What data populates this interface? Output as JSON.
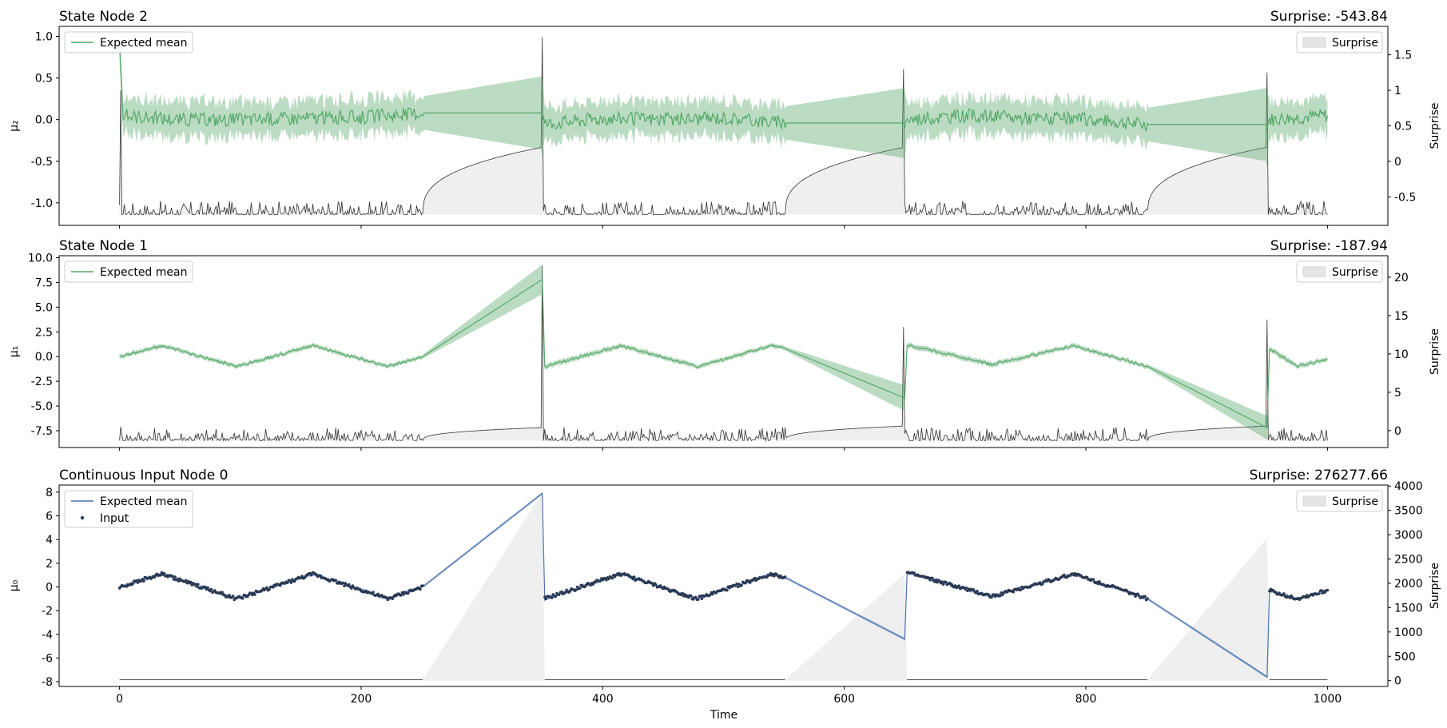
{
  "figure": {
    "xlabel": "Time",
    "xticks": [
      0,
      200,
      400,
      600,
      800,
      1000
    ],
    "xlim": [
      -50,
      1050
    ]
  },
  "chart_data": [
    {
      "type": "line",
      "title": "State Node 2",
      "surprise_label": "Surprise: -543.84",
      "ylabel": "μ₂",
      "ylabel_right": "Surprise",
      "ylim": [
        -1.27,
        1.12
      ],
      "yticks": [
        -1.0,
        -0.5,
        0.0,
        0.5,
        1.0
      ],
      "yticks_right": [
        -0.5,
        0.0,
        0.5,
        1.0,
        1.5
      ],
      "ylim_right": [
        -0.9,
        1.9
      ],
      "legend": {
        "mean_label": "Expected mean",
        "input_label": "",
        "surprise_label": "Surprise"
      },
      "colors": {
        "mean": "#55a868",
        "band": "#55a868",
        "surprise_line": "#333333",
        "surprise_fill": "#e5e5e5"
      },
      "series": {
        "mean_points": [
          [
            0,
            0.9
          ],
          [
            3,
            0.05
          ],
          [
            50,
            0.0
          ],
          [
            100,
            0.0
          ],
          [
            150,
            0.02
          ],
          [
            200,
            0.03
          ],
          [
            251,
            0.08
          ],
          [
            350,
            0.08
          ],
          [
            352,
            -0.05
          ],
          [
            400,
            0.02
          ],
          [
            450,
            0.0
          ],
          [
            500,
            0.02
          ],
          [
            551,
            -0.04
          ],
          [
            650,
            -0.04
          ],
          [
            652,
            0.0
          ],
          [
            700,
            0.05
          ],
          [
            750,
            0.02
          ],
          [
            800,
            0.0
          ],
          [
            851,
            -0.06
          ],
          [
            950,
            -0.06
          ],
          [
            952,
            0.0
          ],
          [
            1000,
            0.05
          ]
        ],
        "band_halfwidth": [
          [
            0,
            0.2
          ],
          [
            251,
            0.2
          ],
          [
            350,
            0.44
          ],
          [
            352,
            0.2
          ],
          [
            551,
            0.2
          ],
          [
            650,
            0.42
          ],
          [
            652,
            0.2
          ],
          [
            851,
            0.2
          ],
          [
            950,
            0.44
          ],
          [
            952,
            0.2
          ],
          [
            1000,
            0.2
          ]
        ],
        "surprise_baseline": -0.75,
        "surprise_spikes": [
          [
            1,
            1.0
          ],
          [
            350,
            1.75
          ],
          [
            649,
            1.3
          ],
          [
            950,
            1.25
          ]
        ],
        "surprise_ramps": [
          [
            251,
            350,
            0.2
          ],
          [
            551,
            650,
            0.2
          ],
          [
            851,
            950,
            0.2
          ]
        ]
      }
    },
    {
      "type": "line",
      "title": "State Node 1",
      "surprise_label": "Surprise: -187.94",
      "ylabel": "μ₁",
      "ylabel_right": "Surprise",
      "ylim": [
        -9.2,
        10.2
      ],
      "yticks": [
        -7.5,
        -5.0,
        -2.5,
        0.0,
        2.5,
        5.0,
        7.5,
        10.0
      ],
      "yticks_right": [
        0,
        5,
        10,
        15,
        20
      ],
      "ylim_right": [
        -2.2,
        22.8
      ],
      "legend": {
        "mean_label": "Expected mean",
        "input_label": "",
        "surprise_label": "Surprise"
      },
      "colors": {
        "mean": "#55a868",
        "band": "#55a868",
        "surprise_line": "#333333",
        "surprise_fill": "#e5e5e5"
      },
      "series": {
        "mean_points": [
          [
            0,
            0.0
          ],
          [
            35,
            1.1
          ],
          [
            97,
            -1.0
          ],
          [
            160,
            1.1
          ],
          [
            222,
            -1.0
          ],
          [
            251,
            0.0
          ],
          [
            350,
            7.8
          ],
          [
            352,
            -1.0
          ],
          [
            415,
            1.1
          ],
          [
            478,
            -1.0
          ],
          [
            540,
            1.1
          ],
          [
            551,
            0.8
          ],
          [
            650,
            -4.2
          ],
          [
            652,
            1.2
          ],
          [
            722,
            -0.8
          ],
          [
            790,
            1.1
          ],
          [
            851,
            -1.0
          ],
          [
            950,
            -7.2
          ],
          [
            952,
            0.8
          ],
          [
            975,
            -1.0
          ],
          [
            1000,
            -0.3
          ]
        ],
        "band_halfwidth": [
          [
            0,
            0.2
          ],
          [
            251,
            0.2
          ],
          [
            350,
            1.5
          ],
          [
            352,
            0.25
          ],
          [
            551,
            0.2
          ],
          [
            650,
            1.3
          ],
          [
            652,
            0.25
          ],
          [
            851,
            0.2
          ],
          [
            950,
            1.2
          ],
          [
            952,
            0.25
          ],
          [
            1000,
            0.2
          ]
        ],
        "surprise_baseline": -1.3,
        "surprise_spikes": [
          [
            1,
            0.5
          ],
          [
            350,
            21.5
          ],
          [
            649,
            13.5
          ],
          [
            950,
            14.5
          ]
        ],
        "surprise_ramps": [
          [
            251,
            350,
            0.4
          ],
          [
            551,
            650,
            0.6
          ],
          [
            851,
            950,
            0.6
          ]
        ]
      }
    },
    {
      "type": "line",
      "title": "Continuous Input Node 0",
      "surprise_label": "Surprise: 276277.66",
      "ylabel": "μ₀",
      "ylabel_right": "Surprise",
      "ylim": [
        -8.4,
        8.6
      ],
      "yticks": [
        -8,
        -6,
        -4,
        -2,
        0,
        2,
        4,
        6,
        8
      ],
      "yticks_right": [
        0,
        500,
        1000,
        1500,
        2000,
        2500,
        3000,
        3500,
        4000
      ],
      "ylim_right": [
        -120,
        4020
      ],
      "legend": {
        "mean_label": "Expected mean",
        "input_label": "Input",
        "surprise_label": "Surprise"
      },
      "colors": {
        "mean": "#4c72b0",
        "band": "#4c72b0",
        "input": "#2a3850",
        "surprise_line": "#333333",
        "surprise_fill": "#e5e5e5"
      },
      "series": {
        "mean_points": [
          [
            0,
            0.0
          ],
          [
            35,
            1.1
          ],
          [
            97,
            -1.0
          ],
          [
            160,
            1.1
          ],
          [
            222,
            -1.0
          ],
          [
            251,
            0.0
          ],
          [
            350,
            7.9
          ],
          [
            352,
            -1.0
          ],
          [
            415,
            1.1
          ],
          [
            478,
            -1.0
          ],
          [
            540,
            1.1
          ],
          [
            551,
            0.8
          ],
          [
            650,
            -4.4
          ],
          [
            652,
            1.2
          ],
          [
            722,
            -0.8
          ],
          [
            790,
            1.1
          ],
          [
            851,
            -1.0
          ],
          [
            950,
            -7.6
          ],
          [
            952,
            -0.3
          ],
          [
            975,
            -1.0
          ],
          [
            1000,
            -0.3
          ]
        ],
        "input_segments": [
          [
            0,
            251
          ],
          [
            352,
            551
          ],
          [
            652,
            851
          ],
          [
            952,
            1000
          ]
        ],
        "surprise_baseline": 0,
        "surprise_spikes": [
          [
            350,
            3860
          ],
          [
            650,
            2200
          ],
          [
            950,
            2930
          ]
        ],
        "surprise_flat": [
          [
            0,
            251,
            20
          ],
          [
            352,
            551,
            20
          ],
          [
            652,
            851,
            20
          ],
          [
            952,
            1000,
            20
          ]
        ]
      }
    }
  ]
}
